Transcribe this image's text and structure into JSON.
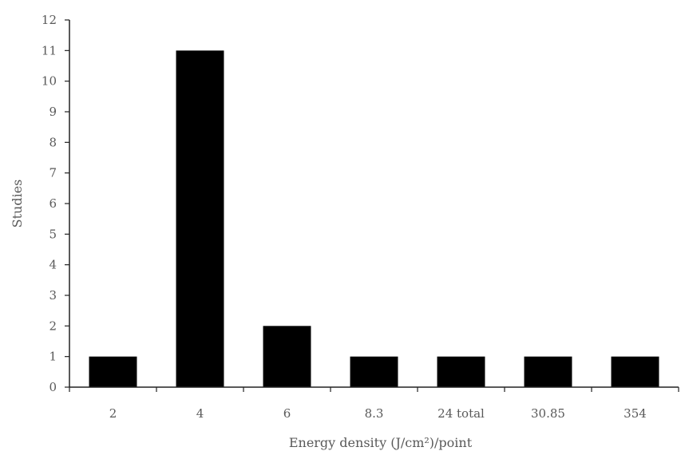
{
  "chart_data": {
    "type": "bar",
    "categories": [
      "2",
      "4",
      "6",
      "8.3",
      "24 total",
      "30.85",
      "354"
    ],
    "values": [
      1,
      11,
      2,
      1,
      1,
      1,
      1
    ],
    "title": "",
    "xlabel": "Energy density (J/cm²)/point",
    "ylabel": "Studies",
    "ylim": [
      0,
      12
    ],
    "yticks": [
      0,
      1,
      2,
      3,
      4,
      5,
      6,
      7,
      8,
      9,
      10,
      11,
      12
    ],
    "grid": false,
    "legend": "none",
    "bar_color": "#000000"
  }
}
